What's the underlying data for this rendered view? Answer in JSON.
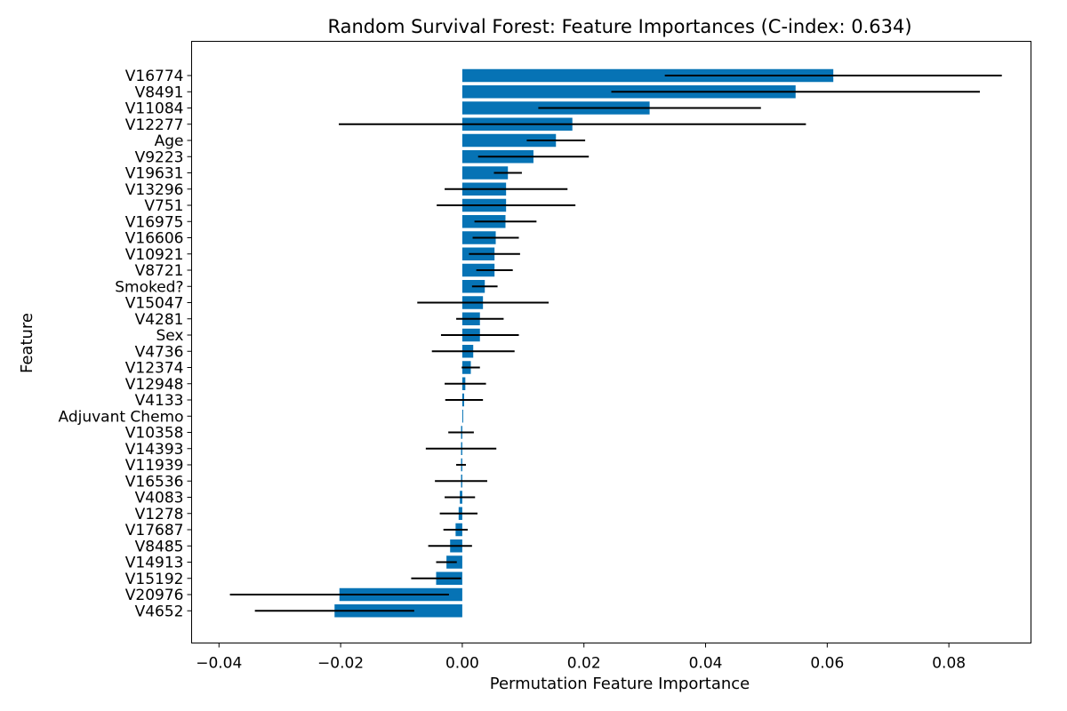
{
  "chart_data": {
    "type": "bar",
    "orientation": "horizontal",
    "title": "Random Survival Forest: Feature Importances (C-index: 0.634)",
    "xlabel": "Permutation Feature Importance",
    "ylabel": "Feature",
    "xlim": [
      -0.0445,
      0.0935
    ],
    "x_ticks": [
      -0.04,
      -0.02,
      0.0,
      0.02,
      0.04,
      0.06,
      0.08
    ],
    "x_tick_labels": [
      "−0.04",
      "−0.02",
      "0.00",
      "0.02",
      "0.04",
      "0.06",
      "0.08"
    ],
    "grid": false,
    "bar_color": "#0673b5",
    "error_color": "#000000",
    "categories": [
      "V16774",
      "V8491",
      "V11084",
      "V12277",
      "Age",
      "V9223",
      "V19631",
      "V13296",
      "V751",
      "V16975",
      "V16606",
      "V10921",
      "V8721",
      "Smoked?",
      "V15047",
      "V4281",
      "Sex",
      "V4736",
      "V12374",
      "V12948",
      "V4133",
      "Adjuvant Chemo",
      "V10358",
      "V14393",
      "V11939",
      "V16536",
      "V4083",
      "V1278",
      "V17687",
      "V8485",
      "V14913",
      "V15192",
      "V20976",
      "V4652"
    ],
    "values": [
      0.061,
      0.0548,
      0.0308,
      0.0181,
      0.0154,
      0.0117,
      0.0075,
      0.0072,
      0.0072,
      0.0071,
      0.0055,
      0.0053,
      0.0053,
      0.0037,
      0.0034,
      0.0029,
      0.0029,
      0.0018,
      0.0014,
      0.0005,
      0.0003,
      0.0,
      -0.0002,
      -0.0002,
      -0.0002,
      -0.0002,
      -0.0004,
      -0.0006,
      -0.0011,
      -0.002,
      -0.0026,
      -0.0043,
      -0.0202,
      -0.021
    ],
    "errors": [
      0.0277,
      0.0303,
      0.0183,
      0.0384,
      0.0048,
      0.0091,
      0.0023,
      0.0101,
      0.0114,
      0.0051,
      0.0038,
      0.0042,
      0.003,
      0.0021,
      0.0108,
      0.0039,
      0.0064,
      0.0068,
      0.0015,
      0.0034,
      0.0031,
      0.0,
      0.0021,
      0.0058,
      0.0008,
      0.0043,
      0.0025,
      0.0031,
      0.002,
      0.0036,
      0.0017,
      0.0041,
      0.018,
      0.0131
    ]
  }
}
